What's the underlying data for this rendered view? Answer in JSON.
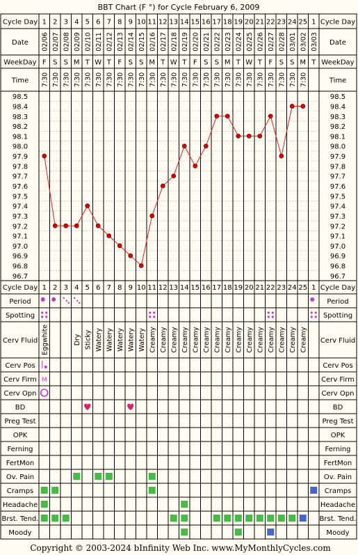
{
  "title": "BBT Chart (F °) for Cycle February 6, 2009",
  "footer": {
    "copyright": "Copyright © 2003-2024 bInfinity Web Inc.",
    "site": "www.MyMonthlyCycles.com"
  },
  "colors": {
    "background": "#fffbf0",
    "grid": "#000000",
    "line": "#e02020",
    "marker": "#dd0000",
    "pink": "#cc33cc",
    "heart": "#e0206a",
    "green": "#44bb44",
    "blue": "#4466cc"
  },
  "labels": {
    "cycle_day": "Cycle Day",
    "date": "Date",
    "weekday": "WeekDay",
    "time": "Time",
    "rows": [
      "Period",
      "Spotting",
      "Cerv Fluid",
      "Cerv Pos",
      "Cerv Firm",
      "Cerv Opn",
      "BD",
      "Preg Test",
      "OPK",
      "Ferning",
      "FertMon",
      "Ov. Pain",
      "Cramps",
      "Headache",
      "Brst. Tend.",
      "Moody"
    ]
  },
  "columns": {
    "cycle_days": [
      "1",
      "2",
      "3",
      "4",
      "5",
      "6",
      "7",
      "8",
      "9",
      "10",
      "11",
      "12",
      "13",
      "14",
      "15",
      "16",
      "17",
      "18",
      "19",
      "20",
      "21",
      "22",
      "23",
      "24",
      "25",
      "1"
    ],
    "dates": [
      "02/06",
      "02/07",
      "02/08",
      "02/09",
      "02/10",
      "02/11",
      "02/12",
      "02/13",
      "02/14",
      "02/15",
      "02/16",
      "02/17",
      "02/18",
      "02/19",
      "02/20",
      "02/21",
      "02/22",
      "02/23",
      "02/24",
      "02/25",
      "02/26",
      "02/27",
      "02/28",
      "03/01",
      "03/02",
      "03/03"
    ],
    "weekdays": [
      "F",
      "S",
      "S",
      "M",
      "T",
      "W",
      "T",
      "F",
      "S",
      "S",
      "M",
      "T",
      "W",
      "T",
      "F",
      "S",
      "S",
      "M",
      "T",
      "W",
      "T",
      "F",
      "S",
      "S",
      "M",
      "T"
    ],
    "times": [
      "7:30",
      "7:30",
      "7:30",
      "7:30",
      "7:30",
      "7:30",
      "7:30",
      "7:30",
      "7:30",
      "7:30",
      "7:30",
      "7:30",
      "7:30",
      "7:30",
      "7:30",
      "7:30",
      "7:30",
      "7:30",
      "7:30",
      "7:30",
      "7:30",
      "7:30",
      "7:30",
      "7:30",
      "7:30",
      ""
    ]
  },
  "cerv_fluid": [
    "Eggwhite",
    "",
    "",
    "Dry",
    "Sticky",
    "Watery",
    "Watery",
    "Watery",
    "Watery",
    "Watery",
    "Creamy",
    "Creamy",
    "Creamy",
    "Creamy",
    "Creamy",
    "Creamy",
    "Creamy",
    "Creamy",
    "Creamy",
    "Creamy",
    "Creamy",
    "Creamy",
    "Creamy",
    "Creamy",
    "Creamy",
    ""
  ],
  "cerv_firm": [
    "M"
  ],
  "period": [
    "big",
    "big",
    "small",
    "small",
    "",
    "",
    "",
    "",
    "",
    "",
    "",
    "",
    "",
    "",
    "",
    "",
    "",
    "",
    "",
    "",
    "",
    "",
    "",
    "",
    "",
    "big"
  ],
  "spotting": [
    0,
    10,
    21,
    25
  ],
  "cerv_pos": [
    0
  ],
  "cerv_opn": [
    0
  ],
  "bd": [
    4,
    8
  ],
  "boxes": {
    "Ov. Pain": {
      "green": [
        3,
        5,
        6,
        10
      ]
    },
    "Cramps": {
      "green": [
        0,
        1,
        10
      ],
      "blue": [
        25
      ]
    },
    "Headache": {
      "green": [
        0,
        13
      ]
    },
    "Brst. Tend.": {
      "green": [
        0,
        1,
        2,
        12,
        13,
        16,
        17,
        18,
        19,
        20,
        21,
        22,
        23
      ],
      "blue": [
        24
      ]
    },
    "Moody": {
      "green": [
        13,
        18
      ],
      "blue": [
        21
      ]
    }
  },
  "chart_data": {
    "type": "line",
    "title": "BBT Chart (F °) for Cycle February 6, 2009",
    "x_categories": [
      "02/06",
      "02/07",
      "02/08",
      "02/09",
      "02/10",
      "02/11",
      "02/12",
      "02/13",
      "02/14",
      "02/15",
      "02/16",
      "02/17",
      "02/18",
      "02/19",
      "02/20",
      "02/21",
      "02/22",
      "02/23",
      "02/24",
      "02/25",
      "02/26",
      "02/27",
      "02/28",
      "03/01",
      "03/02",
      "03/03"
    ],
    "y_ticks": [
      "98.5",
      "98.4",
      "98.3",
      "98.2",
      "98.1",
      "98.0",
      "97.9",
      "97.8",
      "97.7",
      "97.6",
      "97.5",
      "97.4",
      "97.3",
      "97.2",
      "97.1",
      "97.0",
      "96.9",
      "96.8",
      "96.7"
    ],
    "ylim": [
      96.7,
      98.5
    ],
    "temps": [
      97.9,
      97.2,
      97.2,
      97.2,
      97.4,
      97.2,
      97.1,
      97.0,
      96.9,
      96.8,
      97.3,
      97.6,
      97.7,
      98.0,
      97.8,
      98.0,
      98.3,
      98.3,
      98.1,
      98.1,
      98.1,
      98.3,
      97.9,
      98.4,
      98.4,
      null
    ]
  }
}
